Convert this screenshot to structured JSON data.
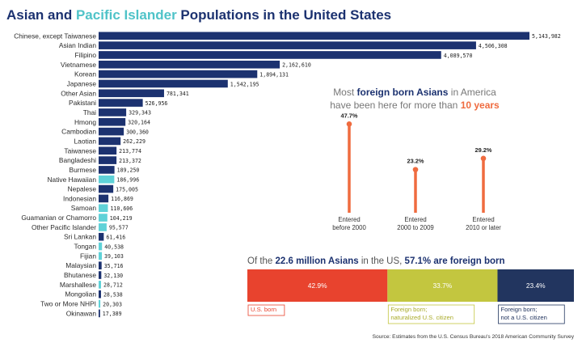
{
  "title": {
    "part1": "Asian",
    "part2": " and ",
    "part3": "Pacific Islander",
    "part4": " Populations in the United States"
  },
  "colors": {
    "asian": "#1c3270",
    "pacific": "#5fd2d8",
    "lollipop": "#ef6b3f",
    "us_born": "#e8432e",
    "naturalized": "#c3c63f",
    "not_citizen": "#22355f",
    "title_dark": "#1c3270",
    "title_teal": "#4fc3c8",
    "grey_text": "#777777"
  },
  "chart_data": [
    {
      "type": "bar",
      "orientation": "horizontal",
      "xlim": [
        0,
        5143982
      ],
      "categories": [
        "Chinese, except Taiwanese",
        "Asian Indian",
        "Filipino",
        "Vietnamese",
        "Korean",
        "Japanese",
        "Other Asian",
        "Pakistani",
        "Thai",
        "Hmong",
        "Cambodian",
        "Laotian",
        "Taiwanese",
        "Bangladeshi",
        "Burmese",
        "Native Hawaiian",
        "Nepalese",
        "Indonesian",
        "Samoan",
        "Guamanian or Chamorro",
        "Other Pacific Islander",
        "Sri Lankan",
        "Tongan",
        "Fijian",
        "Malaysian",
        "Bhutanese",
        "Marshallese",
        "Mongolian",
        "Two or More NHPI",
        "Okinawan"
      ],
      "values": [
        5143982,
        4506308,
        4089570,
        2162610,
        1894131,
        1542195,
        781341,
        526956,
        329343,
        320164,
        300360,
        262229,
        213774,
        213372,
        189250,
        186996,
        175005,
        116869,
        110606,
        104219,
        95577,
        61416,
        40538,
        39103,
        35716,
        32130,
        28712,
        28538,
        20303,
        17389
      ],
      "value_labels": [
        "5,143,982",
        "4,506,308",
        "4,089,570",
        "2,162,610",
        "1,894,131",
        "1,542,195",
        "781,341",
        "526,956",
        "329,343",
        "320,164",
        "300,360",
        "262,229",
        "213,774",
        "213,372",
        "189,250",
        "186,996",
        "175,005",
        "116,869",
        "110,606",
        "104,219",
        "95,577",
        "61,416",
        "40,538",
        "39,103",
        "35,716",
        "32,130",
        "28,712",
        "28,538",
        "20,303",
        "17,389"
      ],
      "group": [
        "asian",
        "asian",
        "asian",
        "asian",
        "asian",
        "asian",
        "asian",
        "asian",
        "asian",
        "asian",
        "asian",
        "asian",
        "asian",
        "asian",
        "asian",
        "pacific",
        "asian",
        "asian",
        "pacific",
        "pacific",
        "pacific",
        "asian",
        "pacific",
        "pacific",
        "asian",
        "asian",
        "pacific",
        "asian",
        "pacific",
        "asian"
      ]
    },
    {
      "type": "lollipop",
      "title_parts": [
        "Most ",
        "foreign born Asians",
        " in America",
        "have been here for more than ",
        "10 years"
      ],
      "categories": [
        [
          "Entered",
          "before 2000"
        ],
        [
          "Entered",
          "2000 to 2009"
        ],
        [
          "Entered",
          "2010 or later"
        ]
      ],
      "values": [
        47.7,
        23.2,
        29.2
      ],
      "value_labels": [
        "47.7%",
        "23.2%",
        "29.2%"
      ]
    },
    {
      "type": "stacked_bar",
      "title_parts": [
        "Of the ",
        "22.6 million Asians",
        " in the US, ",
        "57.1% are foreign born"
      ],
      "segments": [
        {
          "name": "U.S. born",
          "value": 42.9,
          "label": "42.9%",
          "legend": [
            "U.S. born"
          ]
        },
        {
          "name": "Foreign born; naturalized U.S. citizen",
          "value": 33.7,
          "label": "33.7%",
          "legend": [
            "Foreign born;",
            "naturalized U.S. citizen"
          ]
        },
        {
          "name": "Foreign born; not a U.S. citizen",
          "value": 23.4,
          "label": "23.4%",
          "legend": [
            "Foreign born;",
            "not a U.S. citizen"
          ]
        }
      ]
    }
  ],
  "source": "Source: Estimates from the U.S. Census Bureau's 2018 American Community Survey"
}
